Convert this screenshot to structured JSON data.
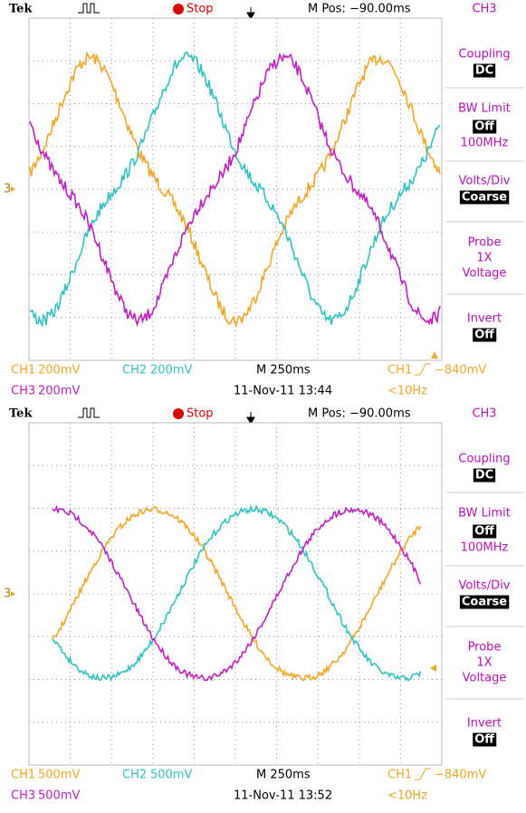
{
  "screens": [
    {
      "header": {
        "brand": "Tek",
        "state": "Stop",
        "m_pos": "M Pos: −90.00ms"
      },
      "menu": {
        "channel": "CH3",
        "items": [
          {
            "label": "Coupling",
            "value": "DC"
          },
          {
            "label": "BW Limit",
            "value": "Off",
            "note": "100MHz"
          },
          {
            "label": "Volts/Div",
            "value": "Coarse"
          },
          {
            "label": "Probe",
            "lines": [
              "1X",
              "Voltage"
            ]
          },
          {
            "label": "Invert",
            "value": "Off"
          }
        ]
      },
      "marker": "3",
      "footer": {
        "ch1": "CH1",
        "ch1_scale": "200mV",
        "ch2": "CH2",
        "ch2_scale": "200mV",
        "timebase": "M 250ms",
        "trigger_source": "CH1",
        "trigger_level": "−840mV",
        "ch3": "CH3",
        "ch3_scale": "200mV",
        "datetime": "11-Nov-11 13:44",
        "frequency": "<10Hz"
      }
    },
    {
      "header": {
        "brand": "Tek",
        "state": "Stop",
        "m_pos": "M Pos: −90.00ms"
      },
      "menu": {
        "channel": "CH3",
        "items": [
          {
            "label": "Coupling",
            "value": "DC"
          },
          {
            "label": "BW Limit",
            "value": "Off",
            "note": "100MHz"
          },
          {
            "label": "Volts/Div",
            "value": "Coarse"
          },
          {
            "label": "Probe",
            "lines": [
              "1X",
              "Voltage"
            ]
          },
          {
            "label": "Invert",
            "value": "Off"
          }
        ]
      },
      "marker": "3",
      "footer": {
        "ch1": "CH1",
        "ch1_scale": "500mV",
        "ch2": "CH2",
        "ch2_scale": "500mV",
        "timebase": "M 250ms",
        "trigger_source": "CH1",
        "trigger_level": "−840mV",
        "ch3": "CH3",
        "ch3_scale": "500mV",
        "datetime": "11-Nov-11 13:52",
        "frequency": "<10Hz"
      }
    }
  ]
}
